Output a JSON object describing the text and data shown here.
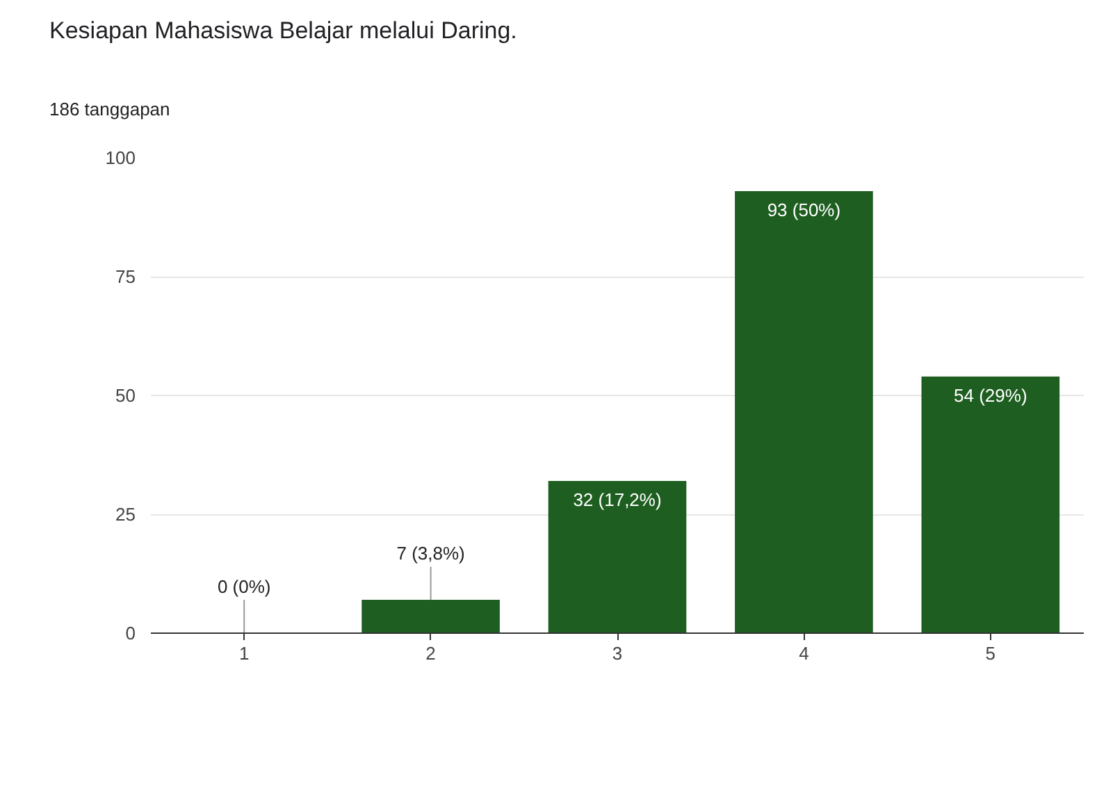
{
  "chart_data": {
    "type": "bar",
    "title": "Kesiapan Mahasiswa Belajar melalui Daring.",
    "subtitle": "186 tanggapan",
    "categories": [
      "1",
      "2",
      "3",
      "4",
      "5"
    ],
    "values": [
      0,
      7,
      32,
      93,
      54
    ],
    "value_labels": [
      "0 (0%)",
      "7 (3,8%)",
      "32 (17,2%)",
      "93 (50%)",
      "54 (29%)"
    ],
    "color": "#1e5e20",
    "ylim": [
      0,
      100
    ],
    "yticks": [
      0,
      25,
      50,
      75,
      100
    ],
    "grid": "y"
  }
}
